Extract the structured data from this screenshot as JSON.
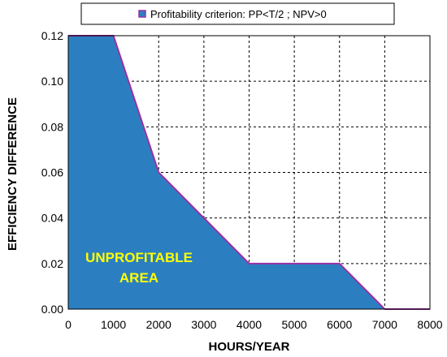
{
  "chart_data": {
    "type": "area",
    "title": "",
    "xlabel": "HOURS/YEAR",
    "ylabel": "EFFICIENCY DIFFERENCE",
    "xlim": [
      0,
      8000
    ],
    "ylim": [
      0,
      0.12
    ],
    "x_ticks": [
      "0",
      "1000",
      "2000",
      "3000",
      "4000",
      "5000",
      "6000",
      "7000",
      "8000"
    ],
    "y_ticks": [
      "0.00",
      "0.02",
      "0.04",
      "0.06",
      "0.08",
      "0.10",
      "0.12"
    ],
    "grid": true,
    "legend_position": "top",
    "series": [
      {
        "name": "Profitability criterion: PP<T/2 ; NPV>0",
        "fill_color": "#2b7fc1",
        "line_color": "#9a2fa6",
        "x": [
          0,
          1000,
          2000,
          3000,
          4000,
          5000,
          6000,
          7000,
          8000
        ],
        "y": [
          0.12,
          0.12,
          0.06,
          0.04,
          0.02,
          0.02,
          0.02,
          0.0,
          0.0
        ]
      }
    ],
    "annotations": [
      "UNPROFITABLE",
      "AREA"
    ]
  }
}
